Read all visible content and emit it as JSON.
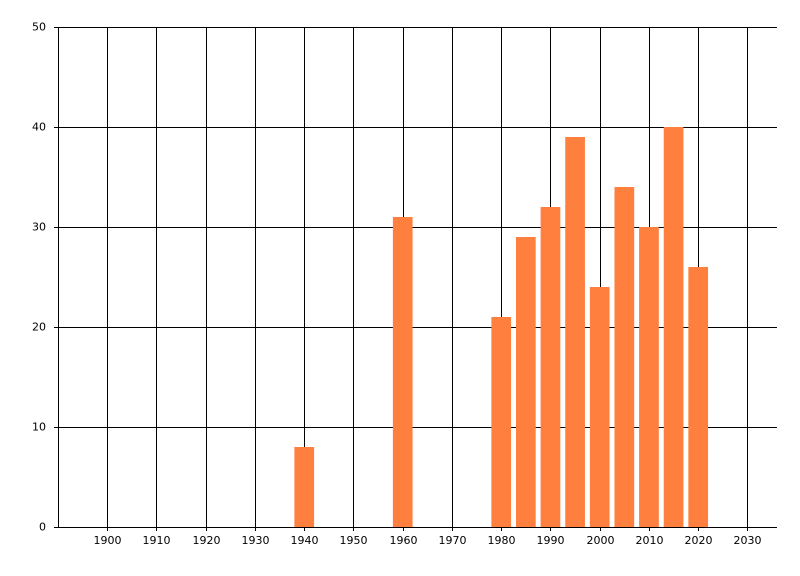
{
  "chart_data": {
    "type": "bar",
    "x": [
      1940,
      1960,
      1980,
      1985,
      1990,
      1995,
      2000,
      2005,
      2010,
      2015,
      2020
    ],
    "values": [
      8,
      31,
      21,
      29,
      32,
      39,
      24,
      34,
      30,
      40,
      26
    ],
    "color": "#ff7f3f",
    "xlim": [
      1890,
      2036
    ],
    "xticks": [
      1900,
      1910,
      1920,
      1930,
      1940,
      1950,
      1960,
      1970,
      1980,
      1990,
      2000,
      2010,
      2020,
      2030
    ],
    "ylim": [
      0,
      50
    ],
    "yticks": [
      0,
      10,
      20,
      30,
      40,
      50
    ],
    "grid": true
  }
}
